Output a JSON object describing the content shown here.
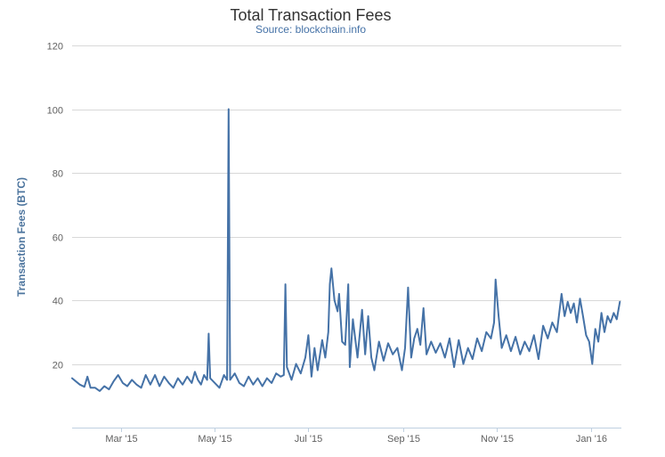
{
  "chart_data": {
    "type": "line",
    "title": "Total Transaction Fees",
    "subtitle": "Source: blockchain.info",
    "xlabel": "",
    "ylabel": "Transaction Fees (BTC)",
    "ylim": [
      0,
      120
    ],
    "yticks": [
      "20",
      "40",
      "60",
      "80",
      "100",
      "120"
    ],
    "xlim": [
      "2015-01-28",
      "2016-01-21"
    ],
    "xticks": [
      {
        "date": "2015-03-01",
        "label": "Mar '15"
      },
      {
        "date": "2015-05-01",
        "label": "May '15"
      },
      {
        "date": "2015-07-01",
        "label": "Jul '15"
      },
      {
        "date": "2015-09-01",
        "label": "Sep '15"
      },
      {
        "date": "2015-11-01",
        "label": "Nov '15"
      },
      {
        "date": "2016-01-01",
        "label": "Jan '16"
      }
    ],
    "grid": true,
    "legend": "none",
    "color": "#4572a7",
    "series": [
      {
        "points": [
          [
            "2015-01-28",
            15.5
          ],
          [
            "2015-02-02",
            13.5
          ],
          [
            "2015-02-05",
            12.8
          ],
          [
            "2015-02-07",
            16.0
          ],
          [
            "2015-02-09",
            12.5
          ],
          [
            "2015-02-12",
            12.5
          ],
          [
            "2015-02-15",
            11.5
          ],
          [
            "2015-02-18",
            13.0
          ],
          [
            "2015-02-21",
            12.0
          ],
          [
            "2015-02-24",
            14.5
          ],
          [
            "2015-02-27",
            16.5
          ],
          [
            "2015-03-02",
            14.0
          ],
          [
            "2015-03-05",
            13.0
          ],
          [
            "2015-03-08",
            15.0
          ],
          [
            "2015-03-11",
            13.5
          ],
          [
            "2015-03-14",
            12.5
          ],
          [
            "2015-03-17",
            16.5
          ],
          [
            "2015-03-20",
            13.5
          ],
          [
            "2015-03-23",
            16.5
          ],
          [
            "2015-03-26",
            13.0
          ],
          [
            "2015-03-29",
            16.0
          ],
          [
            "2015-04-01",
            14.0
          ],
          [
            "2015-04-04",
            12.5
          ],
          [
            "2015-04-07",
            15.5
          ],
          [
            "2015-04-10",
            13.5
          ],
          [
            "2015-04-13",
            16.0
          ],
          [
            "2015-04-16",
            14.0
          ],
          [
            "2015-04-18",
            17.5
          ],
          [
            "2015-04-20",
            15.0
          ],
          [
            "2015-04-22",
            13.5
          ],
          [
            "2015-04-24",
            16.5
          ],
          [
            "2015-04-26",
            15.0
          ],
          [
            "2015-04-27",
            29.5
          ],
          [
            "2015-04-28",
            15.5
          ],
          [
            "2015-05-01",
            14.0
          ],
          [
            "2015-05-04",
            12.5
          ],
          [
            "2015-05-07",
            16.5
          ],
          [
            "2015-05-09",
            15.0
          ],
          [
            "2015-05-10",
            100.0
          ],
          [
            "2015-05-11",
            15.0
          ],
          [
            "2015-05-14",
            17.0
          ],
          [
            "2015-05-17",
            14.0
          ],
          [
            "2015-05-20",
            13.0
          ],
          [
            "2015-05-23",
            16.0
          ],
          [
            "2015-05-26",
            13.5
          ],
          [
            "2015-05-29",
            15.5
          ],
          [
            "2015-06-01",
            13.0
          ],
          [
            "2015-06-04",
            15.5
          ],
          [
            "2015-06-07",
            14.0
          ],
          [
            "2015-06-10",
            17.0
          ],
          [
            "2015-06-13",
            16.0
          ],
          [
            "2015-06-15",
            16.5
          ],
          [
            "2015-06-16",
            45.0
          ],
          [
            "2015-06-17",
            19.0
          ],
          [
            "2015-06-20",
            15.0
          ],
          [
            "2015-06-23",
            20.0
          ],
          [
            "2015-06-26",
            17.0
          ],
          [
            "2015-06-29",
            22.0
          ],
          [
            "2015-07-01",
            29.0
          ],
          [
            "2015-07-03",
            16.0
          ],
          [
            "2015-07-05",
            25.0
          ],
          [
            "2015-07-07",
            18.0
          ],
          [
            "2015-07-10",
            27.5
          ],
          [
            "2015-07-12",
            22.0
          ],
          [
            "2015-07-14",
            30.0
          ],
          [
            "2015-07-15",
            45.0
          ],
          [
            "2015-07-16",
            50.0
          ],
          [
            "2015-07-18",
            40.0
          ],
          [
            "2015-07-20",
            36.5
          ],
          [
            "2015-07-21",
            42.0
          ],
          [
            "2015-07-23",
            27.0
          ],
          [
            "2015-07-25",
            26.0
          ],
          [
            "2015-07-27",
            45.0
          ],
          [
            "2015-07-28",
            19.0
          ],
          [
            "2015-07-30",
            34.0
          ],
          [
            "2015-08-02",
            22.0
          ],
          [
            "2015-08-05",
            37.0
          ],
          [
            "2015-08-07",
            23.0
          ],
          [
            "2015-08-09",
            35.0
          ],
          [
            "2015-08-11",
            22.0
          ],
          [
            "2015-08-13",
            18.0
          ],
          [
            "2015-08-16",
            27.0
          ],
          [
            "2015-08-19",
            21.0
          ],
          [
            "2015-08-22",
            26.5
          ],
          [
            "2015-08-25",
            23.0
          ],
          [
            "2015-08-28",
            25.0
          ],
          [
            "2015-08-31",
            18.0
          ],
          [
            "2015-09-02",
            25.0
          ],
          [
            "2015-09-04",
            44.0
          ],
          [
            "2015-09-06",
            22.0
          ],
          [
            "2015-09-08",
            28.0
          ],
          [
            "2015-09-10",
            31.0
          ],
          [
            "2015-09-12",
            26.0
          ],
          [
            "2015-09-14",
            37.5
          ],
          [
            "2015-09-16",
            23.0
          ],
          [
            "2015-09-19",
            27.0
          ],
          [
            "2015-09-22",
            23.5
          ],
          [
            "2015-09-25",
            26.5
          ],
          [
            "2015-09-28",
            22.0
          ],
          [
            "2015-10-01",
            28.0
          ],
          [
            "2015-10-04",
            19.0
          ],
          [
            "2015-10-07",
            27.5
          ],
          [
            "2015-10-10",
            20.0
          ],
          [
            "2015-10-13",
            25.0
          ],
          [
            "2015-10-16",
            21.5
          ],
          [
            "2015-10-19",
            28.0
          ],
          [
            "2015-10-22",
            24.0
          ],
          [
            "2015-10-25",
            30.0
          ],
          [
            "2015-10-28",
            28.0
          ],
          [
            "2015-10-30",
            33.0
          ],
          [
            "2015-10-31",
            46.5
          ],
          [
            "2015-11-02",
            35.0
          ],
          [
            "2015-11-04",
            25.0
          ],
          [
            "2015-11-07",
            29.0
          ],
          [
            "2015-11-10",
            24.0
          ],
          [
            "2015-11-13",
            28.5
          ],
          [
            "2015-11-16",
            23.0
          ],
          [
            "2015-11-19",
            27.0
          ],
          [
            "2015-11-22",
            24.0
          ],
          [
            "2015-11-25",
            29.0
          ],
          [
            "2015-11-28",
            21.5
          ],
          [
            "2015-12-01",
            32.0
          ],
          [
            "2015-12-04",
            28.0
          ],
          [
            "2015-12-07",
            33.0
          ],
          [
            "2015-12-10",
            30.0
          ],
          [
            "2015-12-13",
            42.0
          ],
          [
            "2015-12-15",
            35.0
          ],
          [
            "2015-12-17",
            39.5
          ],
          [
            "2015-12-19",
            36.0
          ],
          [
            "2015-12-21",
            39.0
          ],
          [
            "2015-12-23",
            33.0
          ],
          [
            "2015-12-25",
            40.5
          ],
          [
            "2015-12-27",
            35.0
          ],
          [
            "2015-12-29",
            29.0
          ],
          [
            "2015-12-31",
            27.0
          ],
          [
            "2016-01-02",
            20.0
          ],
          [
            "2016-01-04",
            31.0
          ],
          [
            "2016-01-06",
            27.0
          ],
          [
            "2016-01-08",
            36.0
          ],
          [
            "2016-01-10",
            30.0
          ],
          [
            "2016-01-12",
            35.0
          ],
          [
            "2016-01-14",
            33.0
          ],
          [
            "2016-01-16",
            36.0
          ],
          [
            "2016-01-18",
            34.0
          ],
          [
            "2016-01-20",
            39.5
          ]
        ]
      }
    ]
  }
}
